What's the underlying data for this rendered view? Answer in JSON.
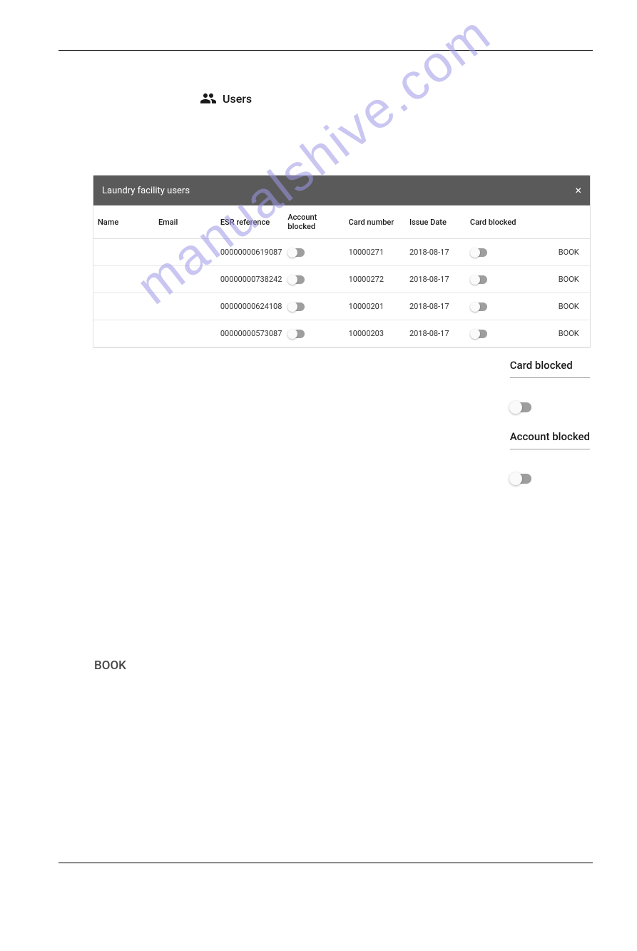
{
  "header": {
    "title": "Users"
  },
  "table": {
    "title": "Laundry facility users",
    "columns": [
      "Name",
      "Email",
      "ESR reference",
      "Account blocked",
      "Card number",
      "Issue Date",
      "Card blocked",
      ""
    ],
    "rows": [
      {
        "name": "",
        "email": "",
        "esr": "00000000619087",
        "account_blocked": false,
        "card": "10000271",
        "issue": "2018-08-17",
        "card_blocked": false,
        "book": "BOOK"
      },
      {
        "name": "",
        "email": "",
        "esr": "00000000738242",
        "account_blocked": false,
        "card": "10000272",
        "issue": "2018-08-17",
        "card_blocked": false,
        "book": "BOOK"
      },
      {
        "name": "",
        "email": "",
        "esr": "00000000624108",
        "account_blocked": false,
        "card": "10000201",
        "issue": "2018-08-17",
        "card_blocked": false,
        "book": "BOOK"
      },
      {
        "name": "",
        "email": "",
        "esr": "00000000573087",
        "account_blocked": false,
        "card": "10000203",
        "issue": "2018-08-17",
        "card_blocked": false,
        "book": "BOOK"
      }
    ]
  },
  "side": {
    "card_blocked_label": "Card blocked",
    "account_blocked_label": "Account blocked"
  },
  "book_large": "BOOK",
  "watermark": "manualshive.com",
  "colors": {
    "header_bg": "#5a5a5a",
    "header_text": "#ffffff",
    "border": "#e0e0e0",
    "text": "#1a1a1a",
    "toggle_track": "#9e9e9e",
    "toggle_thumb": "#fafafa",
    "watermark": "#9d99e6"
  }
}
